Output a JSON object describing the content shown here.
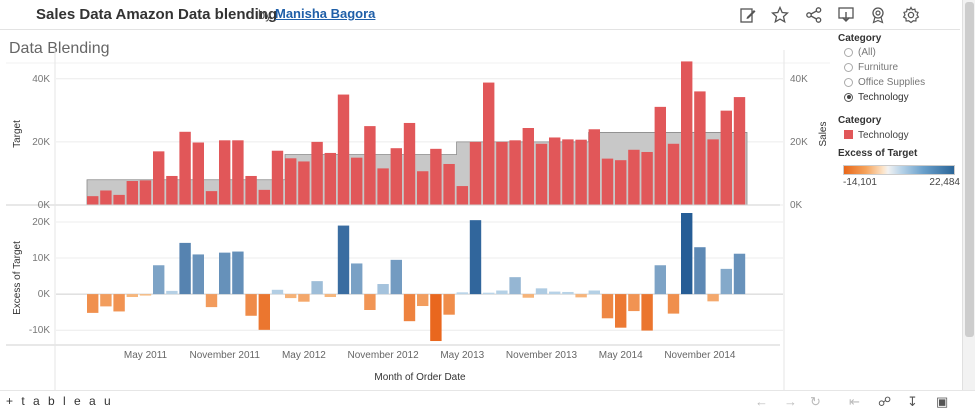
{
  "header": {
    "title": "Sales Data Amazon Data blending",
    "by": "by",
    "author": "Manisha Bagora"
  },
  "dashboard_title": "Data Blending",
  "filters": {
    "category_title": "Category",
    "options": [
      "(All)",
      "Furniture",
      "Office Supplies",
      "Technology"
    ],
    "selected": "Technology"
  },
  "color_legend": {
    "title": "Category",
    "item": "Technology",
    "color": "#e15759"
  },
  "excess_legend": {
    "title": "Excess of Target",
    "min_label": "-14,101",
    "max_label": "22,484"
  },
  "footer": {
    "logo": "+ t a b l e a u"
  },
  "chart_data": [
    {
      "type": "bar",
      "ylabel_left": "Target",
      "ylabel_right": "Sales",
      "yticks": [
        "40K",
        "20K",
        "0K"
      ],
      "ylim": [
        0,
        45000
      ],
      "series": [
        {
          "name": "Sales",
          "color": "#e15759",
          "values": [
            2800,
            4600,
            3200,
            7600,
            7800,
            17000,
            9200,
            23200,
            19800,
            4400,
            20500,
            20500,
            9200,
            4800,
            17200,
            14800,
            13800,
            20000,
            16500,
            35000,
            15000,
            25000,
            11600,
            18000,
            26000,
            10700,
            17800,
            13000,
            6000,
            20000,
            38800,
            20000,
            20500,
            24400,
            19400,
            21400,
            20800,
            20700,
            24000,
            14700,
            14200,
            17500,
            16800,
            31100,
            19400,
            45500,
            36000,
            20800,
            29900,
            34200
          ]
        },
        {
          "name": "Target",
          "color": "#bdbdbd",
          "values": [
            8000,
            8000,
            8000,
            8000,
            8000,
            8000,
            8000,
            8000,
            8000,
            8000,
            8000,
            8000,
            8000,
            8000,
            8000,
            16000,
            16000,
            16000,
            16000,
            16000,
            16000,
            16000,
            16000,
            16000,
            16000,
            16000,
            16000,
            16000,
            20000,
            20000,
            20000,
            20000,
            20000,
            20000,
            20000,
            20000,
            20000,
            20000,
            23000,
            23000,
            23000,
            23000,
            23000,
            23000,
            23000,
            23000,
            23000,
            23000,
            23000,
            23000
          ]
        }
      ]
    },
    {
      "type": "bar",
      "ylabel": "Excess of Target",
      "xlabel": "Month of Order Date",
      "yticks": [
        "20K",
        "10K",
        "0K",
        "-10K"
      ],
      "ylim": [
        -14101,
        22484
      ],
      "xticks": [
        "May 2011",
        "November 2011",
        "May 2012",
        "November 2012",
        "May 2013",
        "November 2013",
        "May 2014",
        "November 2014"
      ],
      "series": [
        {
          "name": "Excess of Target",
          "values": [
            -5200,
            -3400,
            -4800,
            -800,
            -400,
            8000,
            900,
            14200,
            11000,
            -3600,
            11500,
            11800,
            -6000,
            -9900,
            1200,
            -1100,
            -2100,
            3600,
            -800,
            19000,
            8500,
            -4400,
            2800,
            9500,
            -7500,
            -3300,
            -13000,
            -5700,
            500,
            20500,
            400,
            1000,
            4700,
            -1000,
            1600,
            700,
            600,
            -900,
            1000,
            -6700,
            -9300,
            -4700,
            -10100,
            8000,
            -5400,
            22484,
            13000,
            -2000,
            7000,
            11200
          ]
        }
      ]
    }
  ]
}
